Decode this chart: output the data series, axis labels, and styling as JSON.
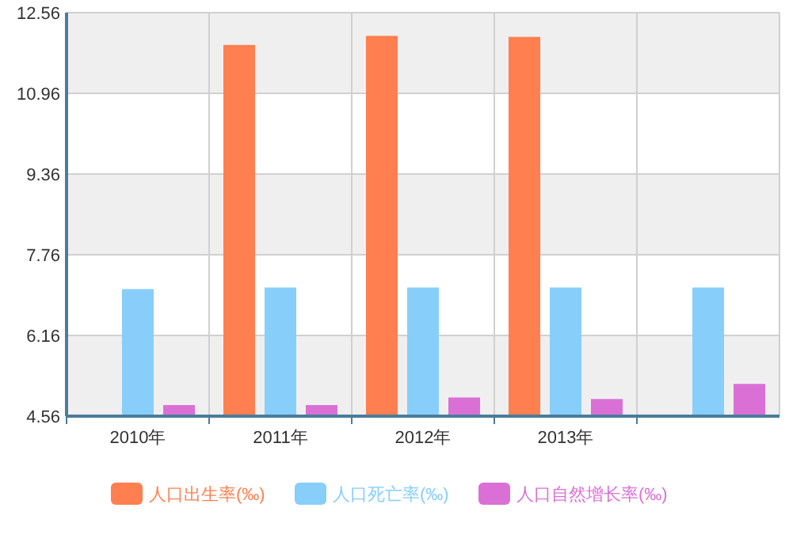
{
  "chart_data": {
    "type": "bar",
    "categories": [
      "2010年",
      "2011年",
      "2012年",
      "2013年",
      null
    ],
    "series": [
      {
        "name": "人口出生率(‰)",
        "color": "#ff7f50",
        "values": [
          null,
          11.92,
          12.1,
          12.08,
          null
        ]
      },
      {
        "name": "人口死亡率(‰)",
        "color": "#87cefa",
        "values": [
          7.08,
          7.11,
          7.11,
          7.11,
          7.11
        ]
      },
      {
        "name": "人口自然增长率(‰)",
        "color": "#da70d6",
        "values": [
          4.78,
          4.78,
          4.93,
          4.9,
          5.2
        ]
      }
    ],
    "ylim": [
      4.56,
      12.56
    ],
    "yticks": [
      4.56,
      6.16,
      7.76,
      9.36,
      10.96,
      12.56
    ],
    "grid": true,
    "legend": "bottom"
  }
}
